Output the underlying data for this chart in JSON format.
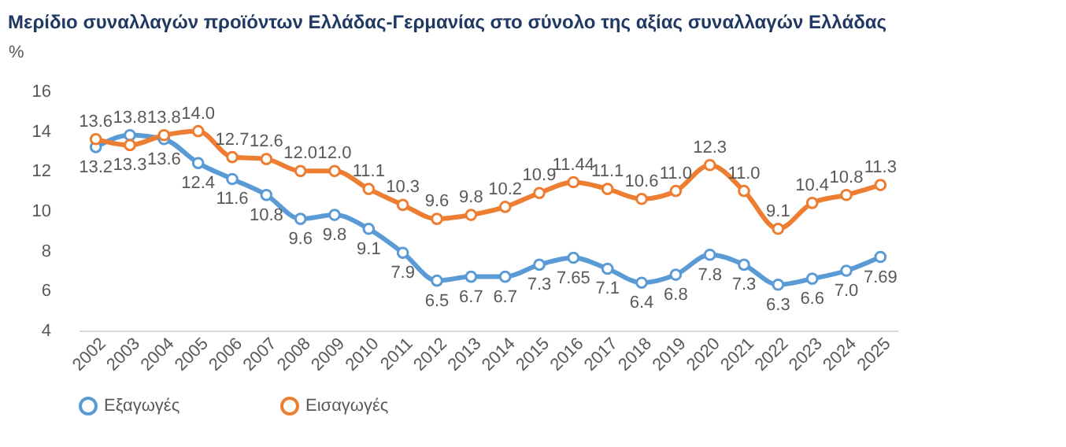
{
  "chart_data": {
    "type": "line",
    "title": "Μερίδιο συναλλαγών προϊόντων Ελλάδας-Γερμανίας στο σύνολο της αξίας συναλλαγών Ελλάδας",
    "ylabel": "%",
    "categories": [
      "2002",
      "2003",
      "2004",
      "2005",
      "2006",
      "2007",
      "2008",
      "2009",
      "2010",
      "2011",
      "2012",
      "2013",
      "2014",
      "2015",
      "2016",
      "2017",
      "2018",
      "2019",
      "2020",
      "2021",
      "2022",
      "2023",
      "2024",
      "2025"
    ],
    "series": [
      {
        "name": "Εξαγωγές",
        "color": "#5b9bd5",
        "values": [
          13.2,
          13.8,
          13.6,
          12.4,
          11.6,
          10.8,
          9.6,
          9.8,
          9.1,
          7.9,
          6.5,
          6.7,
          6.7,
          7.3,
          7.65,
          7.1,
          6.4,
          6.8,
          7.8,
          7.3,
          6.3,
          6.6,
          7.0,
          7.69
        ],
        "value_labels": [
          "13.2",
          "13.8",
          "13.6",
          "12.4",
          "11.6",
          "10.8",
          "9.6",
          "9.8",
          "9.1",
          "7.9",
          "6.5",
          "6.7",
          "6.7",
          "7.3",
          "7.65",
          "7.1",
          "6.4",
          "6.8",
          "7.8",
          "7.3",
          "6.3",
          "6.6",
          "7.0",
          "7.69"
        ]
      },
      {
        "name": "Εισαγωγές",
        "color": "#ed7d31",
        "values": [
          13.6,
          13.3,
          13.8,
          14.0,
          12.7,
          12.6,
          12.0,
          12.0,
          11.1,
          10.3,
          9.6,
          9.8,
          10.2,
          10.9,
          11.44,
          11.1,
          10.6,
          11.0,
          12.3,
          11.0,
          9.1,
          10.4,
          10.8,
          11.3
        ],
        "value_labels": [
          "13.6",
          "13.3",
          "13.8",
          "14.0",
          "12.7",
          "12.6",
          "12.0",
          "12.0",
          "11.1",
          "10.3",
          "9.6",
          "9.8",
          "10.2",
          "10.9",
          "11.44",
          "11.1",
          "10.6",
          "11.0",
          "12.3",
          "11.0",
          "9.1",
          "10.4",
          "10.8",
          "11.3"
        ]
      }
    ],
    "ylim": [
      4,
      16
    ],
    "yticks": [
      4,
      6,
      8,
      10,
      12,
      14,
      16
    ],
    "grid": false,
    "legend": "bottom",
    "marker": "circle",
    "line_style": "solid"
  }
}
